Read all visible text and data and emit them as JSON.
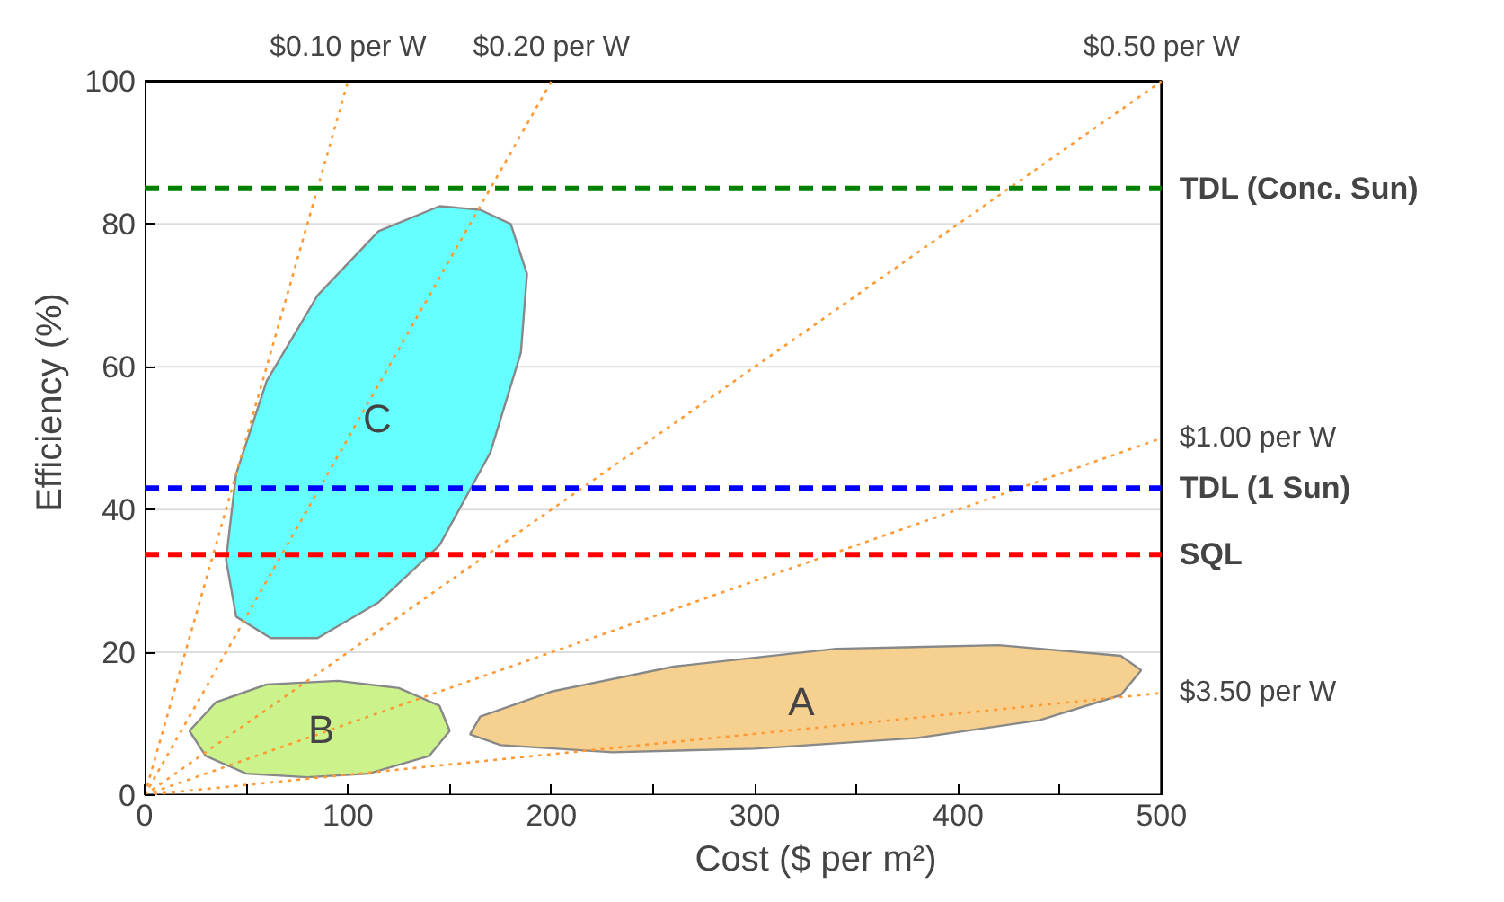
{
  "chart_data": {
    "type": "line",
    "xlabel": "Cost ($ per m²)",
    "ylabel": "Efficiency (%)",
    "xlim": [
      0,
      500
    ],
    "ylim": [
      0,
      100
    ],
    "xticks": [
      0,
      {
        "value": 50,
        "label": null
      },
      100,
      {
        "value": 150,
        "label": null
      },
      200,
      {
        "value": 250,
        "label": null
      },
      300,
      {
        "value": 350,
        "label": null
      },
      400,
      {
        "value": 450,
        "label": null
      },
      500
    ],
    "yticks": [
      0,
      20,
      40,
      60,
      80,
      100
    ],
    "grid": "y",
    "series": [
      {
        "name": "A",
        "type": "area",
        "color": "#f5d08e",
        "x": [
          160,
          175,
          230,
          300,
          380,
          440,
          480,
          490,
          480,
          420,
          340,
          260,
          200,
          165,
          160
        ],
        "values": [
          8.5,
          7,
          6,
          6.5,
          8,
          10.5,
          14,
          17.5,
          19.5,
          21,
          20.5,
          18,
          14.5,
          11,
          8.5
        ]
      },
      {
        "name": "B",
        "type": "area",
        "color": "#ccf28c",
        "x": [
          22,
          30,
          50,
          80,
          110,
          140,
          150,
          145,
          125,
          95,
          60,
          35,
          22
        ],
        "values": [
          9,
          5.5,
          3,
          2.5,
          3,
          5.5,
          9,
          12.5,
          15,
          16,
          15.5,
          13,
          9
        ]
      },
      {
        "name": "C",
        "type": "area",
        "color": "#66ffff",
        "x": [
          62,
          45,
          40,
          45,
          60,
          85,
          115,
          145,
          165,
          180,
          188,
          185,
          170,
          145,
          115,
          85,
          62
        ],
        "values": [
          22,
          25,
          33,
          45,
          58,
          70,
          79,
          82.5,
          82,
          80,
          73,
          62,
          48,
          35,
          27,
          22,
          22
        ]
      },
      {
        "name": "$0.10 per W",
        "line_style": "dotted",
        "color": "#ff9933",
        "x": [
          0,
          100
        ],
        "values": [
          0,
          100
        ]
      },
      {
        "name": "$0.20 per W",
        "line_style": "dotted",
        "color": "#ff9933",
        "x": [
          0,
          200
        ],
        "values": [
          0,
          100
        ]
      },
      {
        "name": "$0.50 per W",
        "line_style": "dotted",
        "color": "#ff9933",
        "x": [
          0,
          500
        ],
        "values": [
          0,
          100
        ]
      },
      {
        "name": "$1.00 per W",
        "line_style": "dotted",
        "color": "#ff9933",
        "x": [
          0,
          500
        ],
        "values": [
          0,
          50
        ]
      },
      {
        "name": "$3.50 per W",
        "line_style": "dotted",
        "color": "#ff9933",
        "x": [
          0,
          500
        ],
        "values": [
          0,
          14.3
        ]
      }
    ],
    "ref_lines": [
      {
        "axis": "y",
        "value": 85,
        "label": "TDL (Conc. Sun)",
        "color": "#008000",
        "line_style": "dashed"
      },
      {
        "axis": "y",
        "value": 43,
        "label": "TDL (1 Sun)",
        "color": "#0000ff",
        "line_style": "dashed"
      },
      {
        "axis": "y",
        "value": 33.7,
        "label": "SQL",
        "color": "#ff0000",
        "line_style": "dashed"
      }
    ]
  }
}
